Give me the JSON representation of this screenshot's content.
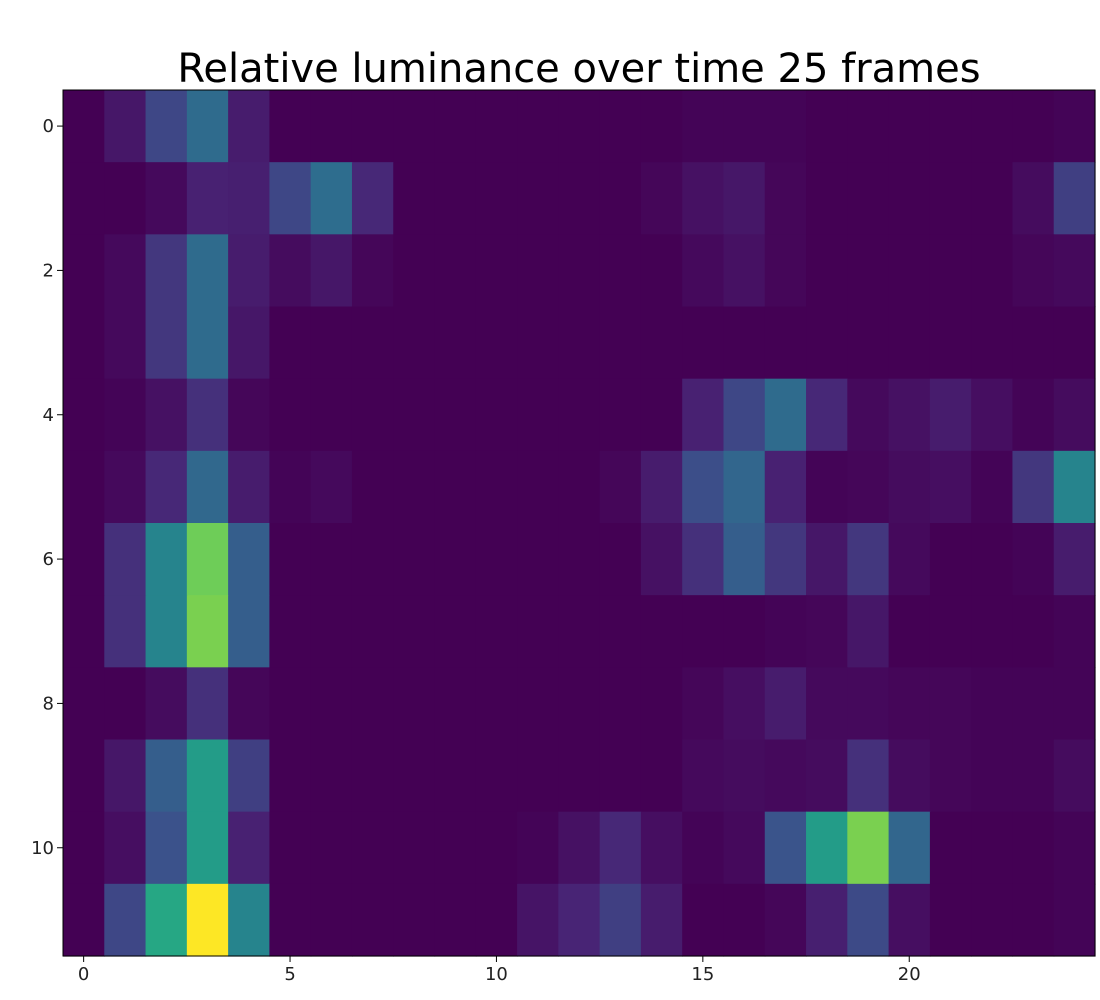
{
  "chart_data": {
    "type": "heatmap",
    "title": "Relative luminance over time 25 frames",
    "xlabel": "",
    "ylabel": "",
    "colormap": "viridis",
    "x_ticks": [
      0,
      5,
      10,
      15,
      20
    ],
    "y_ticks": [
      0,
      2,
      4,
      6,
      8,
      10
    ],
    "xlim": [
      -0.5,
      24.5
    ],
    "ylim": [
      11.5,
      -0.5
    ],
    "n_cols": 25,
    "n_rows": 12,
    "grid": false,
    "values": [
      [
        0.0,
        0.08,
        0.22,
        0.35,
        0.1,
        0.0,
        0.0,
        0.0,
        0.0,
        0.0,
        0.0,
        0.0,
        0.0,
        0.0,
        0.0,
        0.01,
        0.01,
        0.01,
        0.0,
        0.0,
        0.0,
        0.0,
        0.0,
        0.0,
        0.01
      ],
      [
        0.0,
        0.0,
        0.03,
        0.12,
        0.11,
        0.22,
        0.36,
        0.14,
        0.0,
        0.0,
        0.0,
        0.0,
        0.0,
        0.0,
        0.02,
        0.06,
        0.08,
        0.02,
        0.0,
        0.0,
        0.0,
        0.0,
        0.0,
        0.04,
        0.2
      ],
      [
        0.0,
        0.03,
        0.18,
        0.35,
        0.1,
        0.04,
        0.08,
        0.02,
        0.0,
        0.0,
        0.0,
        0.0,
        0.0,
        0.0,
        0.0,
        0.03,
        0.06,
        0.02,
        0.0,
        0.0,
        0.0,
        0.0,
        0.0,
        0.02,
        0.03
      ],
      [
        0.0,
        0.03,
        0.18,
        0.35,
        0.08,
        0.0,
        0.0,
        0.0,
        0.0,
        0.0,
        0.0,
        0.0,
        0.0,
        0.0,
        0.0,
        0.0,
        0.0,
        0.0,
        0.0,
        0.0,
        0.0,
        0.0,
        0.0,
        0.0,
        0.0
      ],
      [
        0.0,
        0.01,
        0.06,
        0.16,
        0.02,
        0.0,
        0.0,
        0.0,
        0.0,
        0.0,
        0.0,
        0.0,
        0.0,
        0.0,
        0.0,
        0.12,
        0.22,
        0.35,
        0.14,
        0.03,
        0.06,
        0.1,
        0.05,
        0.01,
        0.04
      ],
      [
        0.0,
        0.03,
        0.14,
        0.34,
        0.1,
        0.01,
        0.03,
        0.0,
        0.0,
        0.0,
        0.0,
        0.0,
        0.0,
        0.02,
        0.1,
        0.24,
        0.33,
        0.12,
        0.01,
        0.02,
        0.04,
        0.05,
        0.01,
        0.18,
        0.45
      ],
      [
        0.0,
        0.16,
        0.45,
        0.78,
        0.3,
        0.0,
        0.0,
        0.0,
        0.0,
        0.0,
        0.0,
        0.0,
        0.0,
        0.0,
        0.06,
        0.16,
        0.3,
        0.18,
        0.08,
        0.18,
        0.03,
        0.0,
        0.0,
        0.01,
        0.1
      ],
      [
        0.0,
        0.16,
        0.45,
        0.8,
        0.3,
        0.0,
        0.0,
        0.0,
        0.0,
        0.0,
        0.0,
        0.0,
        0.0,
        0.0,
        0.0,
        0.0,
        0.0,
        0.01,
        0.02,
        0.08,
        0.0,
        0.0,
        0.0,
        0.0,
        0.01
      ],
      [
        0.0,
        0.0,
        0.04,
        0.16,
        0.02,
        0.0,
        0.0,
        0.0,
        0.0,
        0.0,
        0.0,
        0.0,
        0.0,
        0.0,
        0.0,
        0.02,
        0.05,
        0.1,
        0.03,
        0.03,
        0.02,
        0.02,
        0.01,
        0.01,
        0.01
      ],
      [
        0.0,
        0.08,
        0.3,
        0.55,
        0.2,
        0.0,
        0.0,
        0.0,
        0.0,
        0.0,
        0.0,
        0.0,
        0.0,
        0.0,
        0.0,
        0.03,
        0.04,
        0.03,
        0.04,
        0.16,
        0.04,
        0.02,
        0.01,
        0.01,
        0.04
      ],
      [
        0.0,
        0.05,
        0.25,
        0.55,
        0.12,
        0.0,
        0.0,
        0.0,
        0.0,
        0.0,
        0.0,
        0.01,
        0.06,
        0.14,
        0.05,
        0.01,
        0.03,
        0.26,
        0.55,
        0.8,
        0.33,
        0.0,
        0.0,
        0.0,
        0.01
      ],
      [
        0.0,
        0.22,
        0.6,
        1.0,
        0.45,
        0.0,
        0.0,
        0.0,
        0.0,
        0.0,
        0.0,
        0.07,
        0.13,
        0.2,
        0.1,
        0.0,
        0.0,
        0.02,
        0.11,
        0.23,
        0.05,
        0.0,
        0.0,
        0.0,
        0.01
      ]
    ]
  }
}
